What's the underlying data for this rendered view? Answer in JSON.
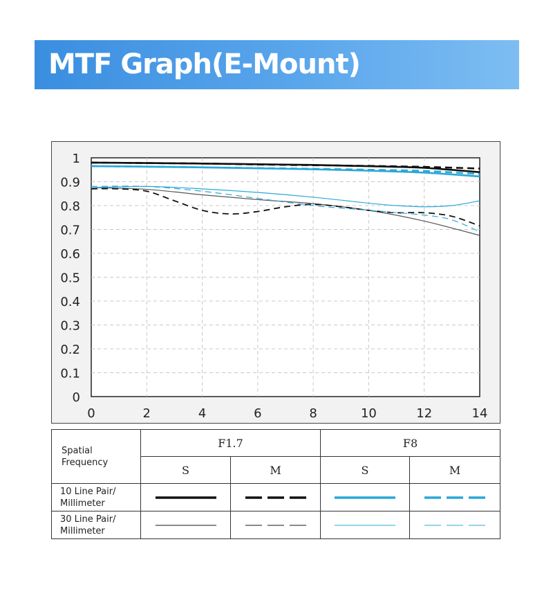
{
  "header": {
    "title": "MTF Graph(E-Mount)"
  },
  "chart_data": {
    "type": "line",
    "title": "",
    "xlabel": "",
    "ylabel": "",
    "xlim": [
      0,
      14
    ],
    "ylim": [
      0,
      1
    ],
    "x_ticks": [
      "0",
      "2",
      "4",
      "6",
      "8",
      "10",
      "12",
      "14"
    ],
    "y_ticks": [
      "0",
      "0.1",
      "0.2",
      "0.3",
      "0.4",
      "0.5",
      "0.6",
      "0.7",
      "0.8",
      "0.9",
      "1"
    ],
    "grid": true,
    "series": [
      {
        "key": "f17_10_s",
        "color": "#111111",
        "weight": "thick",
        "dash": "solid",
        "x": [
          0,
          2,
          4,
          6,
          8,
          10,
          12,
          14
        ],
        "y": [
          0.98,
          0.978,
          0.976,
          0.973,
          0.97,
          0.965,
          0.958,
          0.94
        ]
      },
      {
        "key": "f17_10_m",
        "color": "#111111",
        "weight": "thick",
        "dash": "dashed",
        "x": [
          0,
          2,
          4,
          6,
          8,
          10,
          12,
          14
        ],
        "y": [
          0.98,
          0.978,
          0.976,
          0.972,
          0.969,
          0.966,
          0.962,
          0.955
        ]
      },
      {
        "key": "f8_10_s",
        "color": "#29a8d8",
        "weight": "thick",
        "dash": "solid",
        "x": [
          0,
          2,
          4,
          6,
          8,
          10,
          12,
          14
        ],
        "y": [
          0.965,
          0.963,
          0.96,
          0.956,
          0.952,
          0.946,
          0.938,
          0.922
        ]
      },
      {
        "key": "f8_10_m",
        "color": "#29a8d8",
        "weight": "thick",
        "dash": "dashed",
        "x": [
          0,
          2,
          4,
          6,
          8,
          10,
          12,
          14
        ],
        "y": [
          0.965,
          0.963,
          0.96,
          0.957,
          0.954,
          0.95,
          0.945,
          0.932
        ]
      },
      {
        "key": "f17_30_s",
        "color": "#555555",
        "weight": "thin",
        "dash": "solid",
        "x": [
          0,
          2,
          4,
          6,
          8,
          10,
          12,
          14
        ],
        "y": [
          0.875,
          0.868,
          0.845,
          0.825,
          0.808,
          0.78,
          0.735,
          0.675
        ]
      },
      {
        "key": "f17_30_m",
        "color": "#111111",
        "weight": "medium",
        "dash": "dashed",
        "x": [
          0,
          1,
          2,
          3,
          4,
          5,
          6,
          7,
          8,
          9,
          10,
          11,
          12,
          13,
          14
        ],
        "y": [
          0.87,
          0.87,
          0.86,
          0.82,
          0.78,
          0.765,
          0.775,
          0.795,
          0.805,
          0.795,
          0.78,
          0.77,
          0.77,
          0.755,
          0.715
        ]
      },
      {
        "key": "f8_30_s",
        "color": "#29a8d8",
        "weight": "thin",
        "dash": "solid",
        "x": [
          0,
          2,
          4,
          6,
          8,
          10,
          11,
          12,
          13,
          14
        ],
        "y": [
          0.875,
          0.88,
          0.87,
          0.855,
          0.835,
          0.81,
          0.8,
          0.795,
          0.8,
          0.82
        ]
      },
      {
        "key": "f8_30_m",
        "color": "#29a8d8",
        "weight": "thin",
        "dash": "dashed",
        "x": [
          0,
          2,
          4,
          6,
          8,
          10,
          12,
          13,
          14
        ],
        "y": [
          0.88,
          0.88,
          0.86,
          0.83,
          0.8,
          0.78,
          0.76,
          0.74,
          0.69
        ]
      }
    ]
  },
  "legend": {
    "corner_line1": "Spatial",
    "corner_line2": "Frequency",
    "groups": [
      "F1.7",
      "F8"
    ],
    "sub": [
      "S",
      "M",
      "S",
      "M"
    ],
    "rows": [
      {
        "line1": "10 Line Pair/",
        "line2": "Millimeter"
      },
      {
        "line1": "30 Line Pair/",
        "line2": "Millimeter"
      }
    ],
    "colors": {
      "black": "#111111",
      "blue": "#29a8d8"
    }
  }
}
